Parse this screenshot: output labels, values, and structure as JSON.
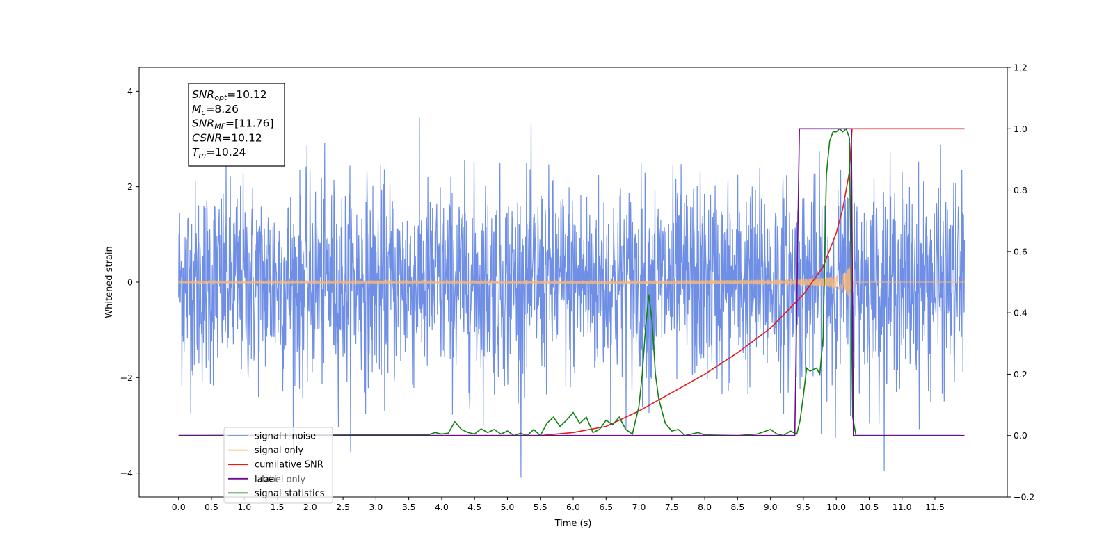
{
  "chart_data": {
    "type": "line",
    "xlabel": "Time (s)",
    "ylabel": "Whitened strain",
    "xlim": [
      -0.6,
      12.6
    ],
    "ylim": [
      -4.5,
      4.5
    ],
    "y2lim": [
      -0.2,
      1.2
    ],
    "grid": false,
    "legend_position": "lower-left",
    "x_ticks": [
      "0.0",
      "0.5",
      "1.0",
      "1.5",
      "2.0",
      "2.5",
      "3.0",
      "3.5",
      "4.0",
      "4.5",
      "5.0",
      "5.5",
      "6.0",
      "6.5",
      "7.0",
      "7.5",
      "8.0",
      "8.5",
      "9.0",
      "9.5",
      "10.0",
      "10.5",
      "11.0",
      "11.5"
    ],
    "y_ticks": [
      "−4",
      "−2",
      "0",
      "2",
      "4"
    ],
    "y2_ticks": [
      "−0.2",
      "0.0",
      "0.2",
      "0.4",
      "0.6",
      "0.8",
      "1.0",
      "1.2"
    ],
    "annotation": {
      "lines": [
        {
          "sym": "SNR",
          "sub": "opt",
          "text": "=10.12"
        },
        {
          "sym": "M",
          "sub": "c",
          "text": "=8.26"
        },
        {
          "sym": "SNR",
          "sub": "MF",
          "text": "=[11.76]"
        },
        {
          "sym": "CSNR",
          "sub": "",
          "text": "=10.12"
        },
        {
          "sym": "T",
          "sub": "m",
          "text": "=10.24"
        }
      ]
    },
    "series": [
      {
        "name": "signal+ noise",
        "axis": "left",
        "color": "#6f8fe6",
        "noise_std": 1.0,
        "duration": 12.0,
        "t_merge": 10.24
      },
      {
        "name": "signal only",
        "axis": "left",
        "color": "#f5b77a",
        "amp_at_merge": 0.9,
        "duration": 12.0,
        "t_merge": 10.24
      },
      {
        "name": "cumilative SNR",
        "axis": "right",
        "color": "#e41a1c",
        "x": [
          0.0,
          5.5,
          6.0,
          6.5,
          7.0,
          7.5,
          8.0,
          8.5,
          9.0,
          9.5,
          9.8,
          10.0,
          10.1,
          10.2,
          10.24,
          11.95
        ],
        "y": [
          0.0,
          0.0,
          0.01,
          0.03,
          0.08,
          0.14,
          0.2,
          0.27,
          0.35,
          0.46,
          0.55,
          0.66,
          0.74,
          0.86,
          1.0,
          1.0
        ]
      },
      {
        "name": "label",
        "axis": "right",
        "color": "#6a0d91",
        "x": [
          0.0,
          9.37,
          9.44,
          10.23,
          10.26,
          11.95
        ],
        "y": [
          0.0,
          0.0,
          1.0,
          1.0,
          0.0,
          0.0
        ]
      },
      {
        "name": "label only",
        "axis": "right",
        "color": "#b0b0b0",
        "x": [],
        "y": []
      },
      {
        "name": "signal statistics",
        "axis": "right",
        "color": "#108010",
        "x": [
          0.0,
          3.8,
          3.9,
          4.0,
          4.1,
          4.2,
          4.3,
          4.4,
          4.5,
          4.6,
          4.7,
          4.8,
          4.9,
          5.0,
          5.1,
          5.2,
          5.3,
          5.4,
          5.5,
          5.6,
          5.7,
          5.8,
          5.9,
          6.0,
          6.1,
          6.2,
          6.3,
          6.4,
          6.5,
          6.6,
          6.7,
          6.8,
          6.9,
          7.0,
          7.05,
          7.1,
          7.15,
          7.2,
          7.25,
          7.3,
          7.4,
          7.5,
          7.6,
          7.7,
          7.8,
          7.9,
          8.0,
          8.5,
          8.8,
          9.0,
          9.1,
          9.2,
          9.3,
          9.4,
          9.45,
          9.5,
          9.55,
          9.6,
          9.7,
          9.75,
          9.8,
          9.85,
          9.9,
          9.95,
          10.0,
          10.05,
          10.1,
          10.15,
          10.2,
          10.25,
          10.3,
          11.9
        ],
        "y": [
          0.0,
          0.003,
          0.01,
          0.005,
          0.008,
          0.045,
          0.02,
          0.01,
          0.005,
          0.022,
          0.01,
          0.02,
          0.005,
          0.015,
          0.0,
          0.008,
          0.0,
          0.02,
          0.0,
          0.04,
          0.06,
          0.03,
          0.05,
          0.075,
          0.04,
          0.06,
          0.01,
          0.02,
          0.05,
          0.035,
          0.06,
          0.02,
          0.005,
          0.095,
          0.2,
          0.35,
          0.46,
          0.37,
          0.2,
          0.12,
          0.04,
          0.015,
          0.02,
          0.0,
          0.005,
          0.01,
          0.002,
          0.0,
          0.005,
          0.02,
          0.005,
          0.0,
          0.015,
          0.005,
          0.05,
          0.13,
          0.22,
          0.21,
          0.22,
          0.2,
          0.32,
          0.85,
          0.96,
          0.99,
          0.99,
          1.0,
          0.99,
          1.0,
          0.97,
          0.06,
          0.0,
          0.0
        ]
      }
    ]
  }
}
